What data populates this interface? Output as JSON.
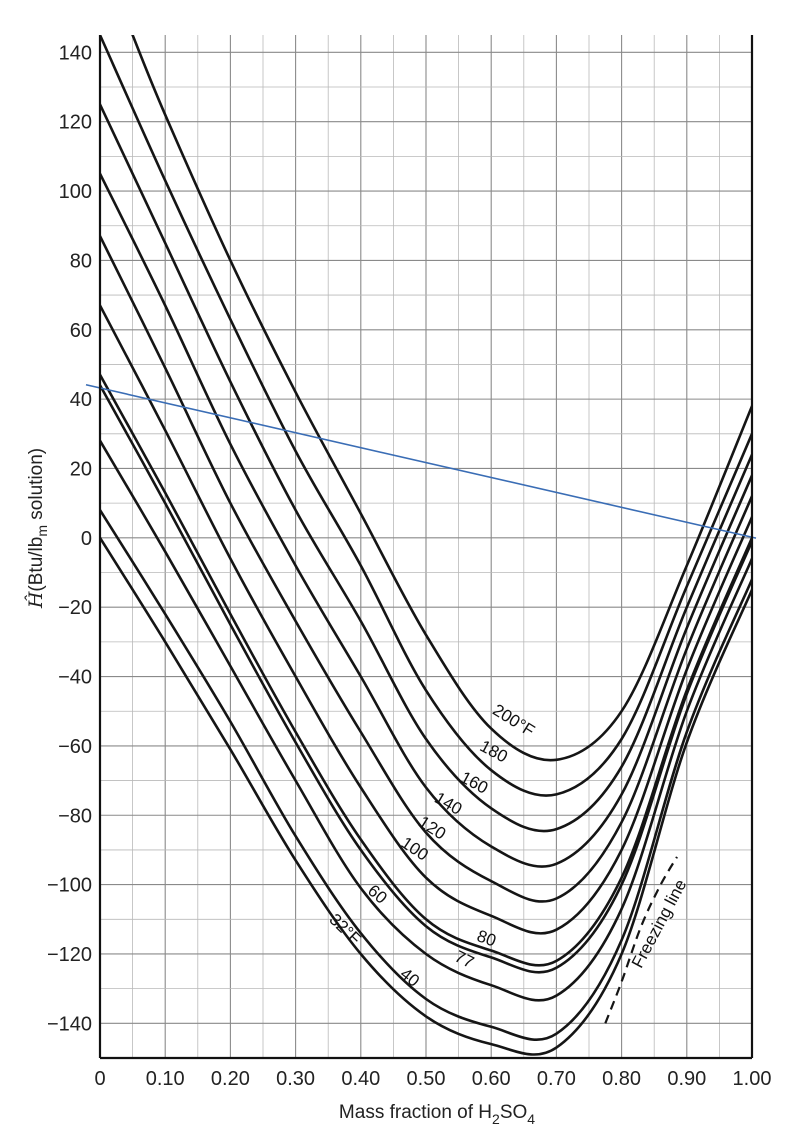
{
  "chart_data": {
    "type": "line",
    "xlabel": "Mass fraction of H2SO4",
    "xlabel_parts": {
      "pre": "Mass fraction of H",
      "sub1": "2",
      "mid": "SO",
      "sub2": "4"
    },
    "ylabel": "Ĥ(Btu/lbm solution)",
    "ylabel_parts": {
      "sym": "Ĥ",
      "pre": "(Btu/lb",
      "sub": "m",
      "post": " solution)"
    },
    "xlim": [
      0,
      1.0
    ],
    "ylim": [
      -150,
      145
    ],
    "x_ticks": [
      "0",
      "0.10",
      "0.20",
      "0.30",
      "0.40",
      "0.50",
      "0.60",
      "0.70",
      "0.80",
      "0.90",
      "1.00"
    ],
    "y_ticks": [
      "140",
      "120",
      "100",
      "80",
      "60",
      "40",
      "20",
      "0",
      "−20",
      "−40",
      "−60",
      "−80",
      "−100",
      "−120",
      "−140"
    ],
    "grid": true,
    "series": [
      {
        "name": "200°F",
        "label": "200°F",
        "x": [
          0.05,
          0.1,
          0.2,
          0.3,
          0.4,
          0.5,
          0.6,
          0.7,
          0.8,
          0.9,
          1.0
        ],
        "y": [
          145,
          122,
          80,
          42,
          7,
          -28,
          -55,
          -64,
          -50,
          -8,
          38
        ]
      },
      {
        "name": "180",
        "label": "180",
        "x": [
          0,
          0.1,
          0.2,
          0.3,
          0.4,
          0.5,
          0.6,
          0.7,
          0.8,
          0.9,
          1.0
        ],
        "y": [
          145,
          103,
          63,
          25,
          -8,
          -44,
          -67,
          -74,
          -58,
          -14,
          30
        ]
      },
      {
        "name": "160",
        "label": "160",
        "x": [
          0,
          0.1,
          0.2,
          0.3,
          0.4,
          0.5,
          0.6,
          0.7,
          0.8,
          0.9,
          1.0
        ],
        "y": [
          125,
          85,
          45,
          8,
          -24,
          -58,
          -78,
          -84,
          -66,
          -20,
          24
        ]
      },
      {
        "name": "140",
        "label": "140",
        "x": [
          0,
          0.1,
          0.2,
          0.3,
          0.4,
          0.5,
          0.6,
          0.7,
          0.8,
          0.9,
          1.0
        ],
        "y": [
          105,
          67,
          27,
          -8,
          -40,
          -72,
          -89,
          -94,
          -74,
          -26,
          18
        ]
      },
      {
        "name": "120",
        "label": "120",
        "x": [
          0,
          0.1,
          0.2,
          0.3,
          0.4,
          0.5,
          0.6,
          0.7,
          0.8,
          0.9,
          1.0
        ],
        "y": [
          87,
          49,
          10,
          -24,
          -56,
          -85,
          -99,
          -104,
          -82,
          -32,
          12
        ]
      },
      {
        "name": "100",
        "label": "100",
        "x": [
          0,
          0.1,
          0.2,
          0.3,
          0.4,
          0.5,
          0.6,
          0.7,
          0.8,
          0.9,
          1.0
        ],
        "y": [
          67,
          31,
          -6,
          -40,
          -72,
          -98,
          -109,
          -113,
          -90,
          -38,
          6
        ]
      },
      {
        "name": "80",
        "label": "80",
        "x": [
          0,
          0.1,
          0.2,
          0.3,
          0.4,
          0.5,
          0.6,
          0.7,
          0.8,
          0.9,
          1.0
        ],
        "y": [
          47,
          13,
          -22,
          -56,
          -87,
          -110,
          -119,
          -122,
          -98,
          -44,
          0
        ]
      },
      {
        "name": "77",
        "label": "77",
        "x": [
          0,
          0.1,
          0.2,
          0.3,
          0.4,
          0.5,
          0.6,
          0.7,
          0.8,
          0.9,
          1.0
        ],
        "y": [
          44,
          10,
          -25,
          -59,
          -90,
          -112,
          -121,
          -124,
          -100,
          -45,
          -1
        ]
      },
      {
        "name": "60",
        "label": "60",
        "x": [
          0,
          0.1,
          0.2,
          0.3,
          0.4,
          0.5,
          0.6,
          0.7,
          0.8,
          0.9,
          1.0
        ],
        "y": [
          28,
          -4,
          -37,
          -70,
          -101,
          -120,
          -129,
          -132,
          -107,
          -50,
          -6
        ]
      },
      {
        "name": "40",
        "label": "40",
        "x": [
          0,
          0.1,
          0.2,
          0.3,
          0.4,
          0.5,
          0.6,
          0.7,
          0.8,
          0.9,
          1.0
        ],
        "y": [
          8,
          -22,
          -53,
          -86,
          -114,
          -133,
          -141,
          -143,
          -116,
          -56,
          -12
        ]
      },
      {
        "name": "32°F",
        "label": "32°F",
        "x": [
          0,
          0.1,
          0.2,
          0.3,
          0.4,
          0.5,
          0.6,
          0.7,
          0.8,
          0.9,
          1.0
        ],
        "y": [
          0,
          -30,
          -61,
          -93,
          -120,
          -138,
          -146,
          -147,
          -120,
          -59,
          -15
        ]
      }
    ],
    "freezing_line": {
      "label": "Freezing line",
      "x": [
        0.775,
        0.8,
        0.83,
        0.86,
        0.885
      ],
      "y": [
        -140,
        -128,
        -112,
        -100,
        -92
      ]
    },
    "annotation_line": {
      "x": [
        0,
        1.0
      ],
      "y": [
        44,
        0
      ],
      "color": "#3a6db5"
    }
  }
}
